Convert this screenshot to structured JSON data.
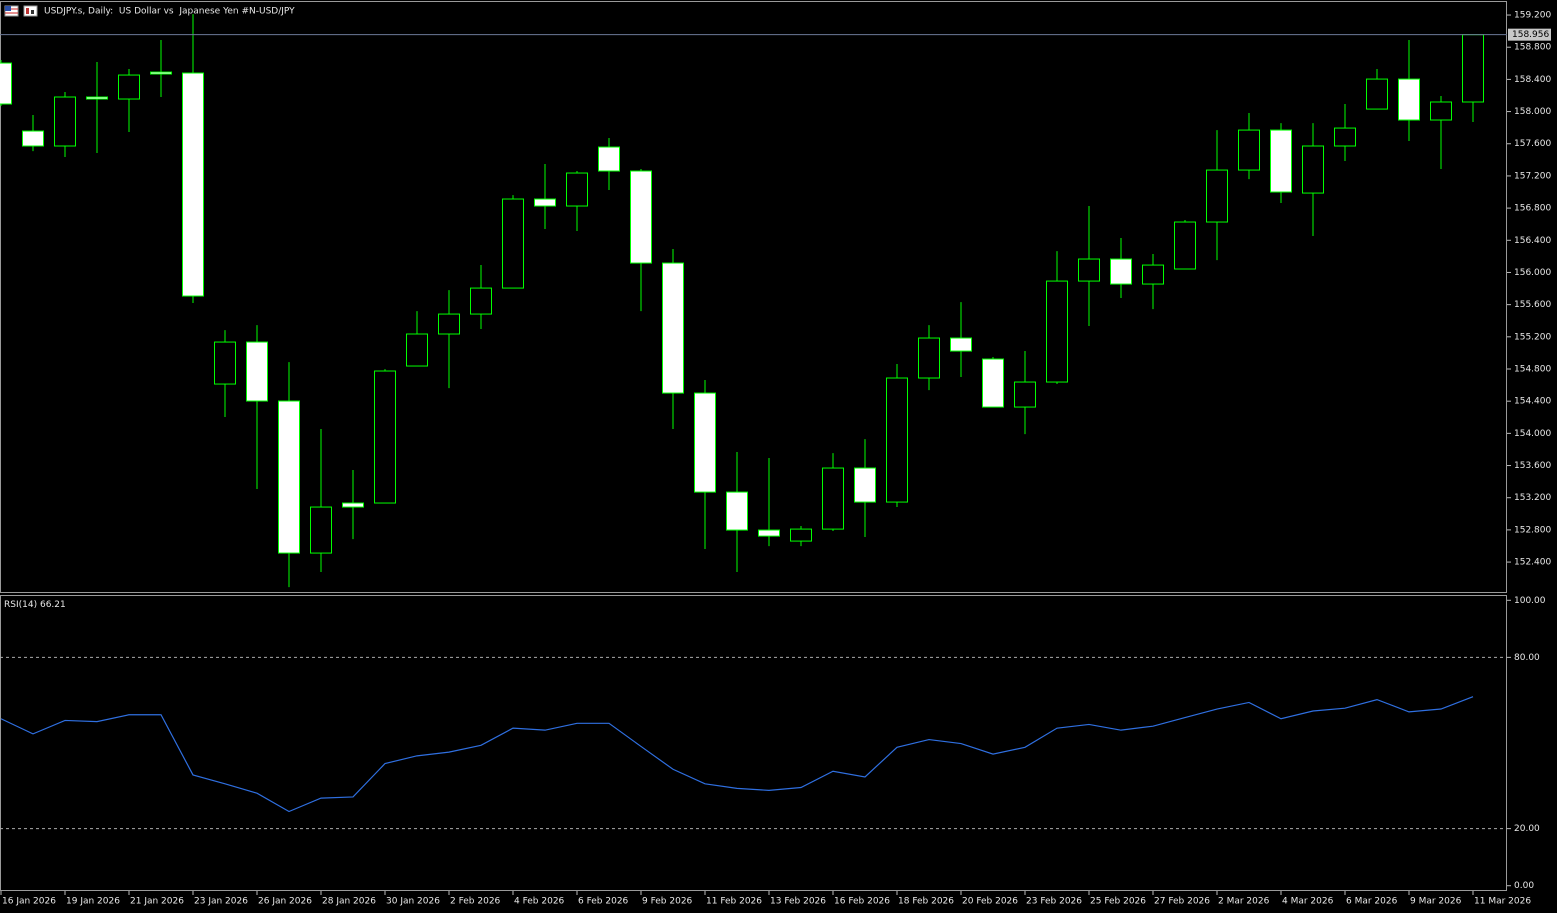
{
  "chart_data": [
    {
      "type": "candlestick",
      "title": "USDJPY.s, Daily:  US Dollar vs  Japanese Yen #N-USD/JPY",
      "categories": [
        "16 Jan 2026",
        null,
        "19 Jan 2026",
        null,
        "21 Jan 2026",
        null,
        "23 Jan 2026",
        null,
        "26 Jan 2026",
        null,
        "28 Jan 2026",
        null,
        "30 Jan 2026",
        null,
        "2 Feb 2026",
        null,
        "4 Feb 2026",
        null,
        "6 Feb 2026",
        null,
        "9 Feb 2026",
        null,
        "11 Feb 2026",
        null,
        "13 Feb 2026",
        null,
        "16 Feb 2026",
        null,
        "18 Feb 2026",
        null,
        "20 Feb 2026",
        null,
        "23 Feb 2026",
        null,
        "25 Feb 2026",
        null,
        "27 Feb 2026",
        null,
        "2 Mar 2026",
        null,
        "4 Mar 2026",
        null,
        "6 Mar 2026",
        null,
        "9 Mar 2026",
        null,
        "11 Mar 2026"
      ],
      "open": [
        158.603,
        157.758,
        157.572,
        158.181,
        158.156,
        158.491,
        158.479,
        154.613,
        155.135,
        154.402,
        152.512,
        153.134,
        153.134,
        154.837,
        155.235,
        155.483,
        155.806,
        156.913,
        156.826,
        157.559,
        157.261,
        156.117,
        154.501,
        153.27,
        152.798,
        152.661,
        152.81,
        153.569,
        153.146,
        154.688,
        155.185,
        154.924,
        154.327,
        154.638,
        155.893,
        156.167,
        155.856,
        156.043,
        156.627,
        157.273,
        157.77,
        156.987,
        157.572,
        158.031,
        158.404,
        157.895,
        158.119
      ],
      "high": [
        158.641,
        157.957,
        158.243,
        158.616,
        158.529,
        158.889,
        159.212,
        155.284,
        155.346,
        154.886,
        154.054,
        153.544,
        154.799,
        155.52,
        155.781,
        156.092,
        156.962,
        157.348,
        157.261,
        157.671,
        157.286,
        156.291,
        154.663,
        153.768,
        153.693,
        152.848,
        153.755,
        153.929,
        154.862,
        155.346,
        155.632,
        154.949,
        155.023,
        156.266,
        156.826,
        156.428,
        156.229,
        156.652,
        157.77,
        157.982,
        157.857,
        157.857,
        158.094,
        158.529,
        158.889,
        158.193,
        158.956
      ],
      "low": [
        158.069,
        157.509,
        157.435,
        157.485,
        157.746,
        158.181,
        155.62,
        154.203,
        153.308,
        152.089,
        152.276,
        152.686,
        153.134,
        154.837,
        154.563,
        155.297,
        155.806,
        156.54,
        156.515,
        157.025,
        155.52,
        154.054,
        152.562,
        152.276,
        152.599,
        152.599,
        152.786,
        152.711,
        153.084,
        154.538,
        154.7,
        154.327,
        153.991,
        154.613,
        155.334,
        155.682,
        155.545,
        156.043,
        156.154,
        157.161,
        156.863,
        156.453,
        157.385,
        158.031,
        157.634,
        157.286,
        157.87
      ],
      "close": [
        158.094,
        157.572,
        158.181,
        158.156,
        158.454,
        158.467,
        155.707,
        155.135,
        154.402,
        152.512,
        153.084,
        153.084,
        154.775,
        155.235,
        155.483,
        155.806,
        156.913,
        156.826,
        157.236,
        157.261,
        156.117,
        154.501,
        153.27,
        152.798,
        152.723,
        152.81,
        153.569,
        153.146,
        154.688,
        155.185,
        155.023,
        154.327,
        154.638,
        155.893,
        156.167,
        155.856,
        156.092,
        156.627,
        157.273,
        157.77,
        157.0,
        157.572,
        157.795,
        158.404,
        157.895,
        158.119,
        158.956
      ],
      "up_color": "#000000",
      "down_color": "#ffffff",
      "wick_color": "#00ff00",
      "price_line_color": "#6c7a98",
      "ylim": [
        152.028,
        159.362
      ],
      "yticks": [
        {
          "value": 159.2,
          "label": "159.200"
        },
        {
          "value": 158.8,
          "label": "158.800"
        },
        {
          "value": 158.4,
          "label": "158.400"
        },
        {
          "value": 158,
          "label": "158.000"
        },
        {
          "value": 157.6,
          "label": "157.600"
        },
        {
          "value": 157.2,
          "label": "157.200"
        },
        {
          "value": 156.8,
          "label": "156.800"
        },
        {
          "value": 156.4,
          "label": "156.400"
        },
        {
          "value": 156,
          "label": "156.000"
        },
        {
          "value": 155.6,
          "label": "155.600"
        },
        {
          "value": 155.2,
          "label": "155.200"
        },
        {
          "value": 154.8,
          "label": "154.800"
        },
        {
          "value": 154.4,
          "label": "154.400"
        },
        {
          "value": 154,
          "label": "154.000"
        },
        {
          "value": 153.6,
          "label": "153.600"
        },
        {
          "value": 153.2,
          "label": "153.200"
        },
        {
          "value": 152.8,
          "label": "152.800"
        },
        {
          "value": 152.4,
          "label": "152.400"
        }
      ]
    },
    {
      "type": "line",
      "title": "RSI(14)",
      "series": [
        {
          "color": "#2f6fe0",
          "values": [
            58.5,
            53.2,
            57.9,
            57.5,
            59.9,
            59.9,
            38.8,
            35.7,
            32.4,
            26.0,
            30.7,
            31.1,
            42.8,
            45.5,
            46.8,
            49.2,
            55.2,
            54.5,
            56.9,
            56.9,
            48.8,
            40.8,
            35.7,
            34.1,
            33.4,
            34.4,
            40.1,
            38.1,
            48.5,
            51.2,
            49.8,
            46.1,
            48.5,
            55.2,
            56.5,
            54.5,
            55.9,
            58.9,
            61.9,
            64.2,
            58.5,
            61.2,
            62.2,
            65.2,
            60.9,
            61.9,
            66.21
          ]
        }
      ],
      "ylim": [
        -1.5,
        101.5
      ],
      "yticks": [
        {
          "value": 100,
          "label": "100.00"
        },
        {
          "value": 80,
          "label": "80.00"
        },
        {
          "value": 20,
          "label": "20.00"
        },
        {
          "value": 0,
          "label": "0.00"
        }
      ],
      "levels": [
        80,
        20
      ]
    }
  ]
}
